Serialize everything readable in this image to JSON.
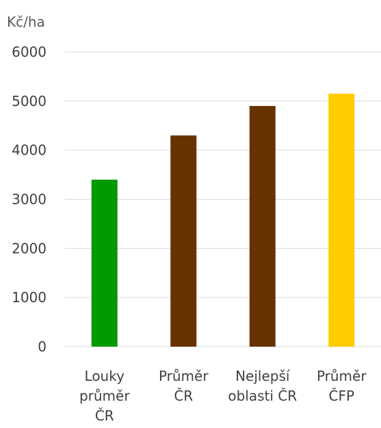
{
  "chart_data": {
    "type": "bar",
    "unit_label": "Kč/ha",
    "ylim": [
      0,
      6000
    ],
    "yticks": [
      0,
      1000,
      2000,
      3000,
      4000,
      5000,
      6000
    ],
    "grid": true,
    "categories": [
      {
        "label": [
          "Louky",
          "průměr",
          "ČR"
        ],
        "value": 3400,
        "color": "#009900"
      },
      {
        "label": [
          "Průměr",
          "ČR"
        ],
        "value": 4300,
        "color": "#663300"
      },
      {
        "label": [
          "Nejlepší",
          "oblasti ČR"
        ],
        "value": 4900,
        "color": "#663300"
      },
      {
        "label": [
          "Průměr",
          "ČFP"
        ],
        "value": 5150,
        "color": "#FFCC00"
      }
    ]
  }
}
